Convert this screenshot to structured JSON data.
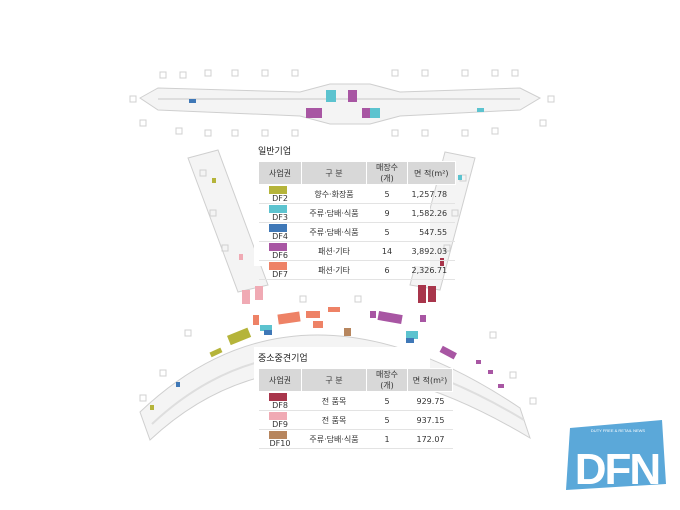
{
  "colors": {
    "DF2": "#b5b43a",
    "DF3": "#5cc3cf",
    "DF4": "#3f78b7",
    "DF6": "#a856a3",
    "DF7": "#ee8266",
    "DF8": "#a8354b",
    "DF9": "#f0aab4",
    "DF10": "#b7865e",
    "logo": "#5ba8d9"
  },
  "general": {
    "title": "일반기업",
    "headers": [
      "사업권",
      "구 분",
      "매장수(개)",
      "면 적(m²)"
    ],
    "rows": [
      {
        "code": "DF2",
        "category": "향수·화장품",
        "stores": "5",
        "area": "1,257.78"
      },
      {
        "code": "DF3",
        "category": "주류·담배·식품",
        "stores": "9",
        "area": "1,582.26"
      },
      {
        "code": "DF4",
        "category": "주류·담배·식품",
        "stores": "5",
        "area": "547.55"
      },
      {
        "code": "DF6",
        "category": "패션·기타",
        "stores": "14",
        "area": "3,892.03"
      },
      {
        "code": "DF7",
        "category": "패션·기타",
        "stores": "6",
        "area": "2,326.71"
      }
    ]
  },
  "sme": {
    "title": "중소중견기업",
    "headers": [
      "사업권",
      "구 분",
      "매장수(개)",
      "면 적(m²)"
    ],
    "rows": [
      {
        "code": "DF8",
        "category": "전 품목",
        "stores": "5",
        "area": "929.75"
      },
      {
        "code": "DF9",
        "category": "전 품목",
        "stores": "5",
        "area": "937.15"
      },
      {
        "code": "DF10",
        "category": "주류·담배·식품",
        "stores": "1",
        "area": "172.07"
      }
    ]
  },
  "logo": {
    "text": "DFN",
    "tagline": "DUTY FREE & RETAIL NEWS"
  }
}
